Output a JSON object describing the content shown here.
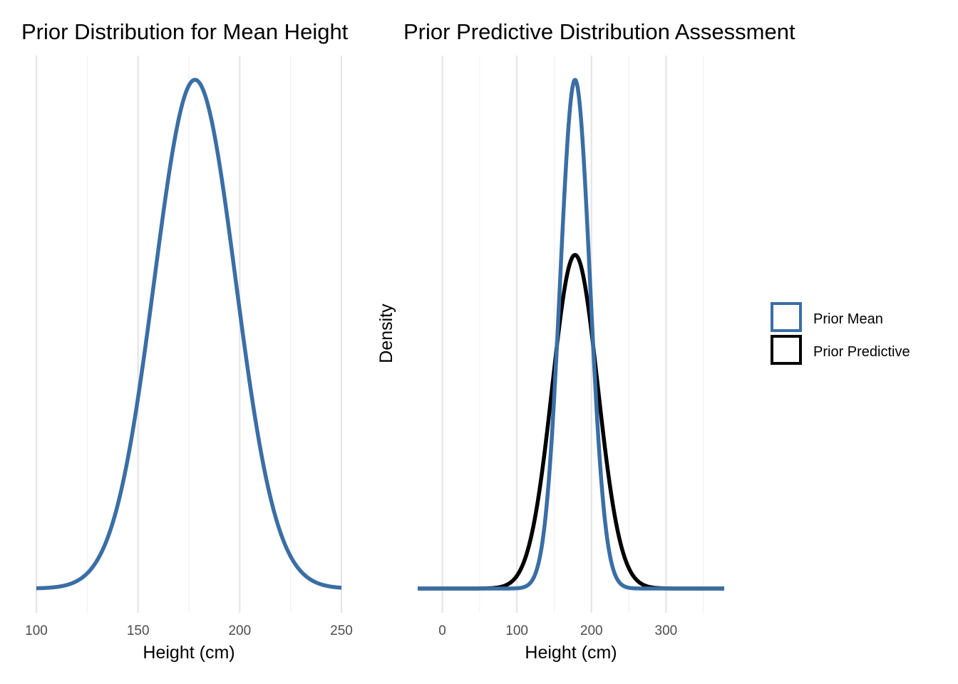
{
  "chart_data": [
    {
      "type": "line",
      "title": "Prior Distribution for Mean Height",
      "xlabel": "Height (cm)",
      "ylabel": "",
      "xlim": [
        100,
        250
      ],
      "xticks": [
        100,
        150,
        200,
        250
      ],
      "grid": true,
      "legend": "none",
      "series": [
        {
          "name": "Prior Mean",
          "color": "#3a6ea5",
          "distribution": "normal",
          "mean": 178,
          "sd": 20,
          "x_range": [
            100,
            250
          ]
        }
      ]
    },
    {
      "type": "line",
      "title": "Prior Predictive Distribution Assessment",
      "xlabel": "Height (cm)",
      "ylabel": "Density",
      "xlim": [
        -33,
        378
      ],
      "xticks": [
        0,
        100,
        200,
        300
      ],
      "grid": true,
      "legend": "right",
      "series": [
        {
          "name": "Prior Mean",
          "color": "#3a6ea5",
          "distribution": "normal",
          "mean": 178,
          "sd": 20,
          "x_range": [
            -33,
            378
          ]
        },
        {
          "name": "Prior Predictive",
          "color": "#000000",
          "distribution": "normal",
          "mean": 178,
          "sd": 30.5,
          "x_range": [
            -33,
            378
          ]
        }
      ]
    }
  ],
  "legend": {
    "items": [
      {
        "label": "Prior Mean",
        "color": "#3a6ea5"
      },
      {
        "label": "Prior Predictive",
        "color": "#000000"
      }
    ]
  }
}
